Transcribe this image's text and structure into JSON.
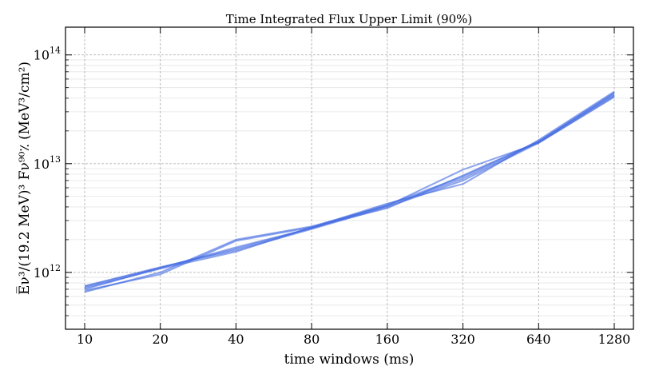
{
  "chart_data": {
    "type": "line",
    "title": "Time Integrated Flux Upper Limit (90%)",
    "xlabel": "time windows (ms)",
    "ylabel": "E̅ν³/(19.2 MeV)³ Fν⁹⁰٪ (MeV³/cm²)",
    "x_scale": "log2",
    "y_scale": "log10",
    "x_categories": [
      "10",
      "20",
      "40",
      "80",
      "160",
      "320",
      "640",
      "1280"
    ],
    "x": [
      10,
      20,
      40,
      80,
      160,
      320,
      640,
      1280
    ],
    "xlim": [
      10,
      1280
    ],
    "ylim": [
      300000000000.0,
      180000000000000.0
    ],
    "y_ticks": [
      1000000000000.0,
      10000000000000.0,
      100000000000000.0
    ],
    "y_tick_labels": [
      "10",
      "10",
      "10"
    ],
    "y_tick_exponents": [
      "12",
      "13",
      "14"
    ],
    "grid": true,
    "line_color": "#4169e1",
    "series": [
      {
        "values": [
          740000000000.0,
          1100000000000.0,
          1650000000000.0,
          2550000000000.0,
          4100000000000.0,
          7300000000000.0,
          15800000000000.0,
          44000000000000.0
        ]
      },
      {
        "values": [
          700000000000.0,
          1100000000000.0,
          1700000000000.0,
          2550000000000.0,
          4200000000000.0,
          7600000000000.0,
          16000000000000.0,
          45000000000000.0
        ]
      },
      {
        "values": [
          750000000000.0,
          1120000000000.0,
          1600000000000.0,
          2500000000000.0,
          4000000000000.0,
          7000000000000.0,
          15500000000000.0,
          42000000000000.0
        ]
      },
      {
        "values": [
          660000000000.0,
          1000000000000.0,
          2000000000000.0,
          2650000000000.0,
          4100000000000.0,
          8800000000000.0,
          15500000000000.0,
          41000000000000.0
        ]
      },
      {
        "values": [
          680000000000.0,
          960000000000.0,
          1950000000000.0,
          2600000000000.0,
          4300000000000.0,
          6500000000000.0,
          16500000000000.0,
          46000000000000.0
        ]
      },
      {
        "values": [
          720000000000.0,
          1080000000000.0,
          1550000000000.0,
          2600000000000.0,
          3900000000000.0,
          7800000000000.0,
          16000000000000.0,
          43000000000000.0
        ]
      }
    ]
  }
}
